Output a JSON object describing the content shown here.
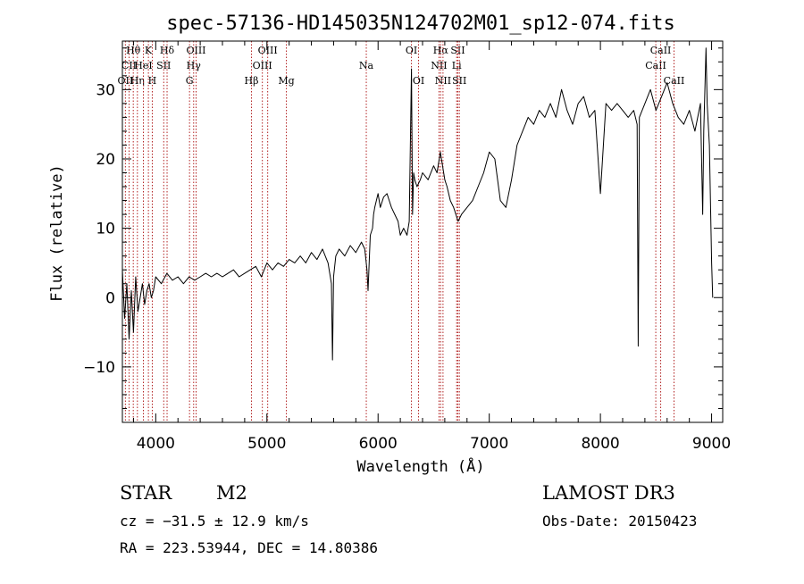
{
  "chart_data": {
    "type": "line",
    "title": "spec-57136-HD145035N124702M01_sp12-074.fits",
    "xlabel": "Wavelength (Å)",
    "ylabel": "Flux (relative)",
    "xlim": [
      3700,
      9100
    ],
    "ylim": [
      -18,
      37
    ],
    "x_ticks": [
      4000,
      5000,
      6000,
      7000,
      8000,
      9000
    ],
    "x_tick_labels": [
      "4000",
      "5000",
      "6000",
      "7000",
      "8000",
      "9000"
    ],
    "y_ticks": [
      -10,
      0,
      10,
      20,
      30
    ],
    "y_tick_labels": [
      "−10",
      "0",
      "10",
      "20",
      "30"
    ],
    "grid": false,
    "series": [
      {
        "color": "#000000",
        "x": [
          3700,
          3720,
          3740,
          3760,
          3780,
          3800,
          3820,
          3840,
          3860,
          3880,
          3900,
          3920,
          3940,
          3960,
          3980,
          4000,
          4050,
          4100,
          4150,
          4200,
          4250,
          4300,
          4350,
          4400,
          4450,
          4500,
          4550,
          4600,
          4650,
          4700,
          4750,
          4800,
          4850,
          4900,
          4950,
          5000,
          5050,
          5100,
          5150,
          5200,
          5250,
          5300,
          5350,
          5400,
          5450,
          5500,
          5550,
          5580,
          5590,
          5600,
          5620,
          5650,
          5700,
          5750,
          5800,
          5850,
          5880,
          5900,
          5910,
          5930,
          5950,
          5960,
          5970,
          6000,
          6020,
          6050,
          6080,
          6100,
          6120,
          6150,
          6180,
          6200,
          6230,
          6260,
          6280,
          6300,
          6310,
          6320,
          6330,
          6350,
          6380,
          6400,
          6450,
          6500,
          6530,
          6550,
          6560,
          6580,
          6600,
          6620,
          6650,
          6680,
          6700,
          6720,
          6750,
          6800,
          6850,
          6900,
          6950,
          7000,
          7050,
          7100,
          7150,
          7200,
          7250,
          7300,
          7350,
          7400,
          7450,
          7500,
          7550,
          7600,
          7650,
          7700,
          7750,
          7800,
          7850,
          7900,
          7950,
          8000,
          8050,
          8100,
          8150,
          8200,
          8250,
          8300,
          8330,
          8340,
          8350,
          8400,
          8450,
          8500,
          8550,
          8600,
          8650,
          8700,
          8750,
          8800,
          8850,
          8900,
          8920,
          8930,
          8950,
          8960,
          8980,
          9000,
          9010
        ],
        "y": [
          4,
          -3,
          2,
          -6,
          1,
          -5,
          3,
          -2,
          0,
          2,
          -1,
          1,
          2,
          0,
          1,
          3,
          2,
          3.5,
          2.5,
          3,
          2,
          3,
          2.5,
          3,
          3.5,
          3,
          3.5,
          3,
          3.5,
          4,
          3,
          3.5,
          4,
          4.5,
          3,
          5,
          4,
          5,
          4.5,
          5.5,
          5,
          6,
          5,
          6.5,
          5.5,
          7,
          5,
          2,
          -9,
          3,
          6,
          7,
          6,
          7.5,
          6.5,
          8,
          7,
          4,
          1,
          9,
          10,
          12,
          13,
          15,
          13,
          14.5,
          15,
          14,
          13,
          12,
          11,
          9,
          10,
          9,
          11,
          33,
          12,
          18,
          17,
          16,
          17,
          18,
          17,
          19,
          18,
          20,
          21,
          19,
          17,
          16,
          14,
          13,
          12,
          11,
          12,
          13,
          14,
          16,
          18,
          21,
          20,
          14,
          13,
          17,
          22,
          24,
          26,
          25,
          27,
          26,
          28,
          26,
          30,
          27,
          25,
          28,
          29,
          26,
          27,
          15,
          28,
          27,
          28,
          27,
          26,
          27,
          25,
          -7,
          26,
          28,
          30,
          27,
          29,
          31,
          28,
          26,
          25,
          27,
          24,
          28,
          12,
          24,
          36,
          28,
          22,
          5,
          0
        ]
      }
    ],
    "line_markers": [
      {
        "label": "OII",
        "wavelength": 3727,
        "row": 3
      },
      {
        "label": "CII",
        "wavelength": 3760,
        "row": 2
      },
      {
        "label": "Hθ",
        "wavelength": 3798,
        "row": 1
      },
      {
        "label": "Hη",
        "wavelength": 3835,
        "row": 3
      },
      {
        "label": "HeI",
        "wavelength": 3889,
        "row": 2
      },
      {
        "label": "K",
        "wavelength": 3934,
        "row": 1
      },
      {
        "label": "H",
        "wavelength": 3969,
        "row": 3
      },
      {
        "label": "SII",
        "wavelength": 4072,
        "row": 2
      },
      {
        "label": "Hδ",
        "wavelength": 4102,
        "row": 1
      },
      {
        "label": "G",
        "wavelength": 4304,
        "row": 3
      },
      {
        "label": "Hγ",
        "wavelength": 4341,
        "row": 2
      },
      {
        "label": "OIII",
        "wavelength": 4363,
        "row": 1
      },
      {
        "label": "Hβ",
        "wavelength": 4861,
        "row": 3
      },
      {
        "label": "OIII",
        "wavelength": 4959,
        "row": 2
      },
      {
        "label": "OIII",
        "wavelength": 5007,
        "row": 1
      },
      {
        "label": "Mg",
        "wavelength": 5175,
        "row": 3
      },
      {
        "label": "Na",
        "wavelength": 5894,
        "row": 2
      },
      {
        "label": "OI",
        "wavelength": 6300,
        "row": 1
      },
      {
        "label": "OI",
        "wavelength": 6364,
        "row": 3
      },
      {
        "label": "NII",
        "wavelength": 6548,
        "row": 2
      },
      {
        "label": "Hα",
        "wavelength": 6563,
        "row": 1
      },
      {
        "label": "NII",
        "wavelength": 6584,
        "row": 3
      },
      {
        "label": "Li",
        "wavelength": 6707,
        "row": 2
      },
      {
        "label": "SII",
        "wavelength": 6717,
        "row": 1
      },
      {
        "label": "SII",
        "wavelength": 6731,
        "row": 3
      },
      {
        "label": "CaII",
        "wavelength": 8498,
        "row": 2
      },
      {
        "label": "CaII",
        "wavelength": 8542,
        "row": 1
      },
      {
        "label": "CaII",
        "wavelength": 8662,
        "row": 3
      }
    ]
  },
  "info": {
    "class_label": "STAR",
    "subclass_label": "M2",
    "survey_label": "LAMOST DR3",
    "cz_text": "cz = −31.5 ± 12.9 km/s",
    "obs_date_text": "Obs-Date: 20150423",
    "radec_text": "RA = 223.53944, DEC =  14.80386"
  },
  "colors": {
    "line_marker": "#b22222",
    "spectrum": "#000000",
    "axes": "#000000"
  }
}
